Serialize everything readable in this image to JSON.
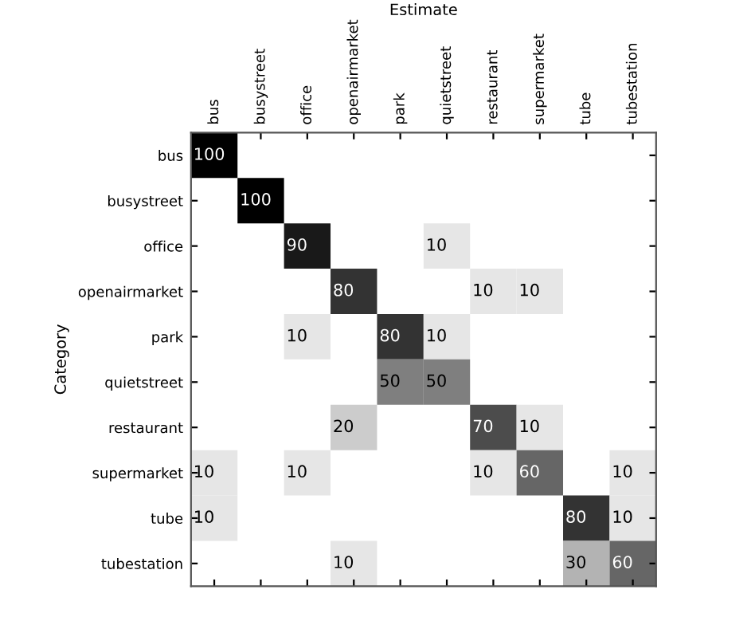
{
  "chart_data": {
    "type": "heatmap",
    "xlabel": "Estimate",
    "ylabel": "Category",
    "categories": [
      "bus",
      "busystreet",
      "office",
      "openairmarket",
      "park",
      "quietstreet",
      "restaurant",
      "supermarket",
      "tube",
      "tubestation"
    ],
    "y_categories": [
      "bus",
      "busystreet",
      "office",
      "openairmarket",
      "park",
      "quietstreet",
      "restaurant",
      "supermarket",
      "tube",
      "tubestation"
    ],
    "cells": [
      [
        100,
        null,
        null,
        null,
        null,
        null,
        null,
        null,
        null,
        null
      ],
      [
        null,
        100,
        null,
        null,
        null,
        null,
        null,
        null,
        null,
        null
      ],
      [
        null,
        null,
        90,
        null,
        null,
        10,
        null,
        null,
        null,
        null
      ],
      [
        null,
        null,
        null,
        80,
        null,
        null,
        10,
        10,
        null,
        null
      ],
      [
        null,
        null,
        10,
        null,
        80,
        10,
        null,
        null,
        null,
        null
      ],
      [
        null,
        null,
        null,
        null,
        50,
        50,
        null,
        null,
        null,
        null
      ],
      [
        null,
        null,
        null,
        20,
        null,
        null,
        70,
        10,
        null,
        null
      ],
      [
        10,
        null,
        10,
        null,
        null,
        null,
        10,
        60,
        null,
        10
      ],
      [
        10,
        null,
        null,
        null,
        null,
        null,
        null,
        null,
        80,
        10
      ],
      [
        null,
        null,
        null,
        10,
        null,
        null,
        null,
        null,
        30,
        60
      ]
    ],
    "data_labels": true
  }
}
